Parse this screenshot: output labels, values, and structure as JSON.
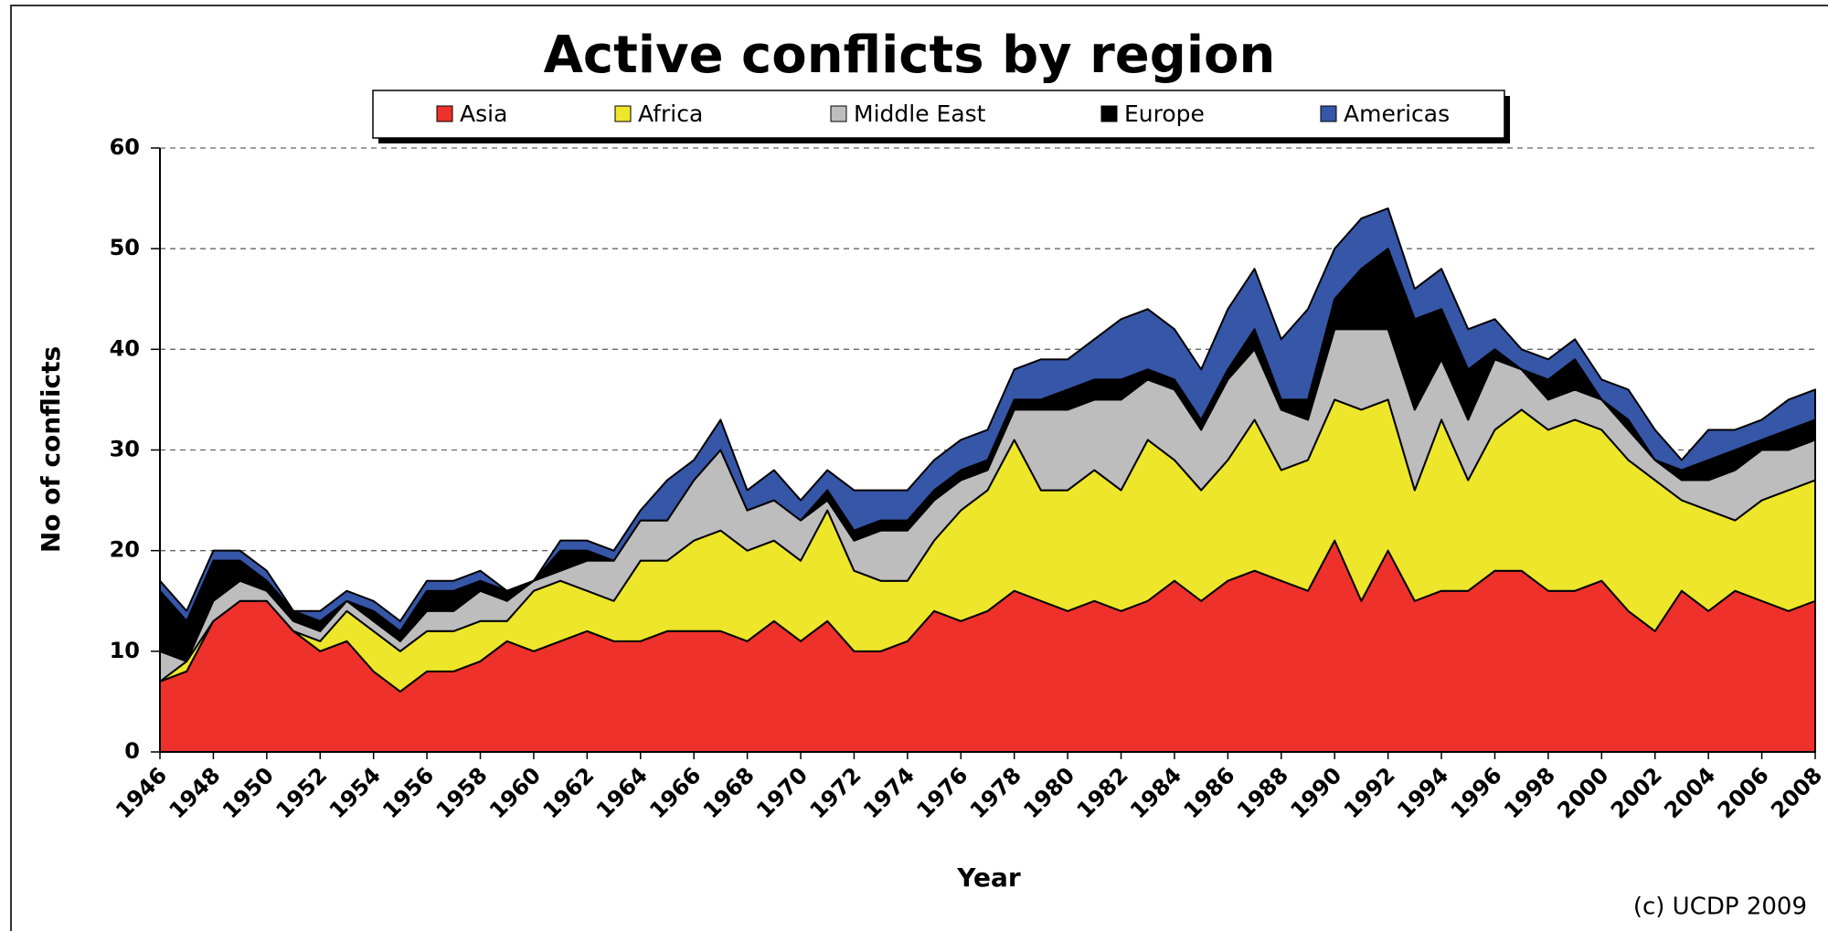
{
  "chart_data": {
    "type": "stacked_area",
    "title": "Active conflicts by region",
    "x_label": "Year",
    "y_label": "No of conflicts",
    "credit": "(c) UCDP 2009",
    "x": [
      1946,
      1947,
      1948,
      1949,
      1950,
      1951,
      1952,
      1953,
      1954,
      1955,
      1956,
      1957,
      1958,
      1959,
      1960,
      1961,
      1962,
      1963,
      1964,
      1965,
      1966,
      1967,
      1968,
      1969,
      1970,
      1971,
      1972,
      1973,
      1974,
      1975,
      1976,
      1977,
      1978,
      1979,
      1980,
      1981,
      1982,
      1983,
      1984,
      1985,
      1986,
      1987,
      1988,
      1989,
      1990,
      1991,
      1992,
      1993,
      1994,
      1995,
      1996,
      1997,
      1998,
      1999,
      2000,
      2001,
      2002,
      2003,
      2004,
      2005,
      2006,
      2007,
      2008
    ],
    "xlim": [
      1946,
      2008
    ],
    "xticks": [
      1946,
      1948,
      1950,
      1952,
      1954,
      1956,
      1958,
      1960,
      1962,
      1964,
      1966,
      1968,
      1970,
      1972,
      1974,
      1976,
      1978,
      1980,
      1982,
      1984,
      1986,
      1988,
      1990,
      1992,
      1994,
      1996,
      1998,
      2000,
      2002,
      2004,
      2006,
      2008
    ],
    "ylim": [
      0,
      60
    ],
    "yticks": [
      0,
      10,
      20,
      30,
      40,
      50,
      60
    ],
    "grid": true,
    "series": [
      {
        "name": "Asia",
        "color": "#ee312b",
        "values": [
          7,
          8,
          13,
          15,
          15,
          12,
          10,
          11,
          8,
          6,
          8,
          8,
          9,
          11,
          10,
          11,
          12,
          11,
          11,
          12,
          12,
          12,
          11,
          13,
          11,
          13,
          10,
          10,
          11,
          14,
          13,
          14,
          16,
          15,
          14,
          15,
          14,
          15,
          17,
          15,
          17,
          18,
          17,
          16,
          21,
          15,
          20,
          15,
          16,
          16,
          18,
          18,
          16,
          16,
          17,
          14,
          12,
          16,
          14,
          16,
          15,
          14,
          15
        ]
      },
      {
        "name": "Africa",
        "color": "#ede62a",
        "values": [
          0,
          1,
          0,
          0,
          0,
          0,
          1,
          3,
          4,
          4,
          4,
          4,
          4,
          2,
          6,
          6,
          4,
          4,
          8,
          7,
          9,
          10,
          9,
          8,
          8,
          11,
          8,
          7,
          6,
          7,
          11,
          12,
          15,
          11,
          12,
          13,
          12,
          16,
          12,
          11,
          12,
          15,
          11,
          13,
          14,
          19,
          15,
          11,
          17,
          11,
          14,
          16,
          16,
          17,
          15,
          15,
          15,
          9,
          10,
          7,
          10,
          12,
          12
        ]
      },
      {
        "name": "Middle East",
        "color": "#bdbdbd",
        "values": [
          3,
          0,
          2,
          2,
          1,
          1,
          1,
          1,
          1,
          1,
          2,
          2,
          3,
          2,
          1,
          1,
          3,
          4,
          4,
          4,
          6,
          8,
          4,
          4,
          4,
          1,
          3,
          5,
          5,
          4,
          3,
          2,
          3,
          8,
          8,
          7,
          9,
          6,
          7,
          6,
          8,
          7,
          6,
          4,
          7,
          8,
          7,
          8,
          6,
          6,
          7,
          4,
          3,
          3,
          3,
          3,
          2,
          2,
          3,
          5,
          5,
          4,
          4
        ]
      },
      {
        "name": "Europe",
        "color": "#000000",
        "values": [
          6,
          4,
          4,
          2,
          1,
          1,
          1,
          0,
          1,
          1,
          2,
          2,
          1,
          1,
          0,
          2,
          1,
          0,
          0,
          0,
          0,
          0,
          0,
          0,
          0,
          1,
          1,
          1,
          1,
          1,
          1,
          1,
          1,
          1,
          2,
          2,
          2,
          1,
          1,
          1,
          1,
          2,
          1,
          2,
          3,
          6,
          8,
          9,
          5,
          5,
          1,
          0,
          2,
          3,
          0,
          1,
          0,
          1,
          2,
          2,
          1,
          2,
          2
        ]
      },
      {
        "name": "Americas",
        "color": "#3656a8",
        "values": [
          1,
          1,
          1,
          1,
          1,
          0,
          1,
          1,
          1,
          1,
          1,
          1,
          1,
          0,
          0,
          1,
          1,
          1,
          1,
          4,
          2,
          3,
          2,
          3,
          2,
          2,
          4,
          3,
          3,
          3,
          3,
          3,
          3,
          4,
          3,
          4,
          6,
          6,
          5,
          5,
          6,
          6,
          6,
          9,
          5,
          5,
          4,
          3,
          4,
          4,
          3,
          2,
          2,
          2,
          2,
          3,
          3,
          1,
          3,
          2,
          2,
          3,
          3
        ]
      }
    ]
  }
}
